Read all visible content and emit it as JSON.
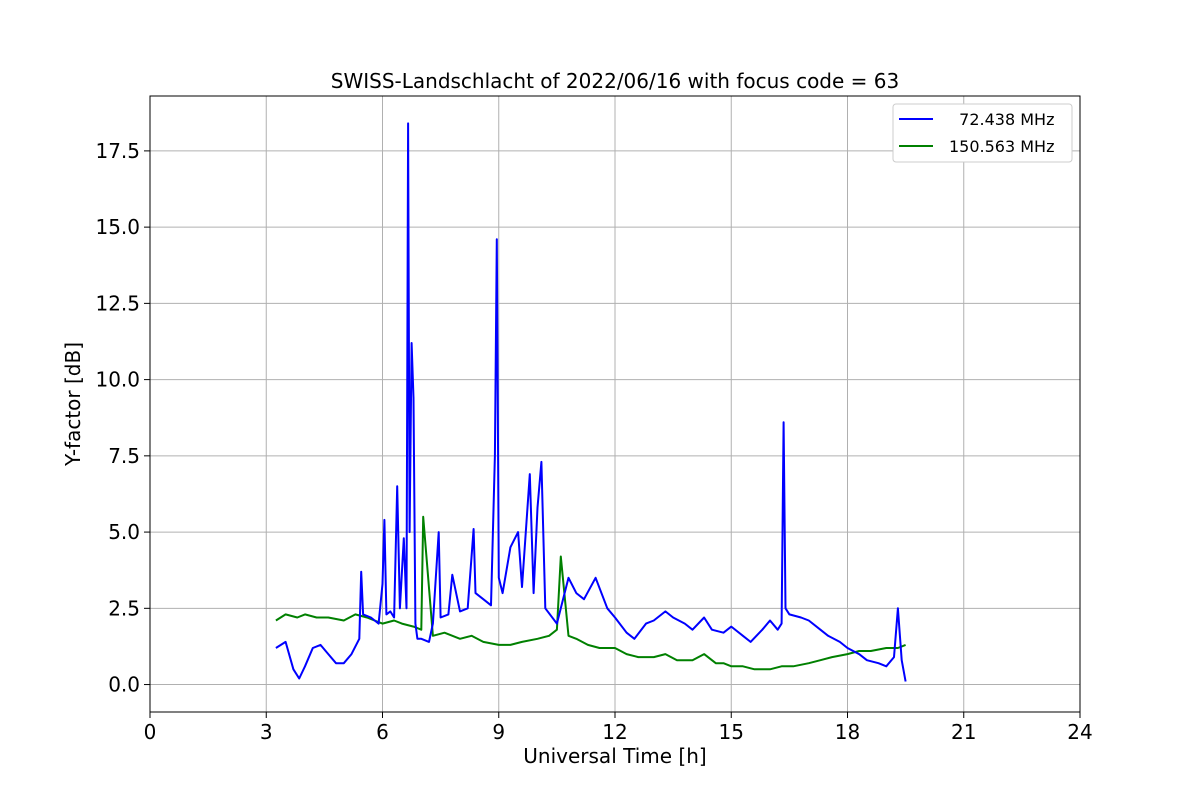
{
  "chart_data": {
    "type": "line",
    "title": "SWISS-Landschlacht of 2022/06/16 with focus code = 63",
    "xlabel": "Universal Time [h]",
    "ylabel": "Y-factor [dB]",
    "xlim": [
      0,
      24
    ],
    "ylim": [
      -0.9,
      19.3
    ],
    "xticks": [
      0,
      3,
      6,
      9,
      12,
      15,
      18,
      21,
      24
    ],
    "xtick_labels": [
      "0",
      "3",
      "6",
      "9",
      "12",
      "15",
      "18",
      "21",
      "24"
    ],
    "yticks": [
      0,
      2.5,
      5,
      7.5,
      10,
      12.5,
      15,
      17.5
    ],
    "ytick_labels": [
      "0.0",
      "2.5",
      "5.0",
      "7.5",
      "10.0",
      "12.5",
      "15.0",
      "17.5"
    ],
    "grid": true,
    "legend_position": "top-right",
    "series": [
      {
        "name": "  72.438 MHz",
        "color": "#0000ff",
        "x": [
          3.25,
          3.5,
          3.7,
          3.85,
          4.0,
          4.2,
          4.4,
          4.6,
          4.8,
          5.0,
          5.2,
          5.4,
          5.45,
          5.5,
          5.7,
          5.9,
          6.0,
          6.05,
          6.1,
          6.2,
          6.3,
          6.38,
          6.45,
          6.55,
          6.62,
          6.66,
          6.7,
          6.75,
          6.8,
          6.85,
          6.9,
          7.0,
          7.2,
          7.3,
          7.45,
          7.5,
          7.7,
          7.8,
          8.0,
          8.2,
          8.35,
          8.4,
          8.6,
          8.8,
          8.9,
          8.95,
          9.0,
          9.1,
          9.3,
          9.5,
          9.6,
          9.8,
          9.9,
          10.0,
          10.1,
          10.2,
          10.5,
          10.8,
          11.0,
          11.2,
          11.5,
          11.8,
          12.0,
          12.3,
          12.5,
          12.8,
          13.0,
          13.3,
          13.5,
          13.8,
          14.0,
          14.3,
          14.5,
          14.8,
          15.0,
          15.3,
          15.5,
          15.8,
          16.0,
          16.2,
          16.3,
          16.35,
          16.4,
          16.5,
          16.8,
          17.0,
          17.3,
          17.5,
          17.8,
          18.0,
          18.3,
          18.5,
          18.8,
          19.0,
          19.2,
          19.3,
          19.4,
          19.5
        ],
        "y": [
          1.2,
          1.4,
          0.5,
          0.2,
          0.6,
          1.2,
          1.3,
          1.0,
          0.7,
          0.7,
          1.0,
          1.5,
          3.7,
          2.3,
          2.2,
          2.0,
          3.3,
          5.4,
          2.3,
          2.4,
          2.2,
          6.5,
          2.5,
          4.8,
          2.5,
          18.4,
          5.0,
          11.2,
          9.4,
          2.0,
          1.5,
          1.5,
          1.4,
          2.0,
          5.0,
          2.2,
          2.3,
          3.6,
          2.4,
          2.5,
          5.1,
          3.0,
          2.8,
          2.6,
          7.5,
          14.6,
          3.5,
          3.0,
          4.5,
          5.0,
          3.2,
          6.9,
          3.0,
          5.8,
          7.3,
          2.5,
          2.0,
          3.5,
          3.0,
          2.8,
          3.5,
          2.5,
          2.2,
          1.7,
          1.5,
          2.0,
          2.1,
          2.4,
          2.2,
          2.0,
          1.8,
          2.2,
          1.8,
          1.7,
          1.9,
          1.6,
          1.4,
          1.8,
          2.1,
          1.8,
          2.0,
          8.6,
          2.5,
          2.3,
          2.2,
          2.1,
          1.8,
          1.6,
          1.4,
          1.2,
          1.0,
          0.8,
          0.7,
          0.6,
          0.9,
          2.5,
          0.8,
          0.1
        ]
      },
      {
        "name": "150.563 MHz",
        "color": "#008000",
        "x": [
          3.25,
          3.5,
          3.8,
          4.0,
          4.3,
          4.6,
          5.0,
          5.3,
          5.6,
          6.0,
          6.3,
          6.5,
          6.8,
          7.0,
          7.05,
          7.3,
          7.6,
          8.0,
          8.3,
          8.6,
          9.0,
          9.3,
          9.6,
          10.0,
          10.3,
          10.5,
          10.6,
          10.8,
          11.0,
          11.3,
          11.6,
          12.0,
          12.3,
          12.6,
          13.0,
          13.3,
          13.6,
          14.0,
          14.3,
          14.6,
          14.8,
          15.0,
          15.3,
          15.6,
          16.0,
          16.3,
          16.6,
          17.0,
          17.3,
          17.6,
          18.0,
          18.3,
          18.6,
          19.0,
          19.3,
          19.5
        ],
        "y": [
          2.1,
          2.3,
          2.2,
          2.3,
          2.2,
          2.2,
          2.1,
          2.3,
          2.2,
          2.0,
          2.1,
          2.0,
          1.9,
          1.8,
          5.5,
          1.6,
          1.7,
          1.5,
          1.6,
          1.4,
          1.3,
          1.3,
          1.4,
          1.5,
          1.6,
          1.8,
          4.2,
          1.6,
          1.5,
          1.3,
          1.2,
          1.2,
          1.0,
          0.9,
          0.9,
          1.0,
          0.8,
          0.8,
          1.0,
          0.7,
          0.7,
          0.6,
          0.6,
          0.5,
          0.5,
          0.6,
          0.6,
          0.7,
          0.8,
          0.9,
          1.0,
          1.1,
          1.1,
          1.2,
          1.2,
          1.3
        ]
      }
    ]
  }
}
